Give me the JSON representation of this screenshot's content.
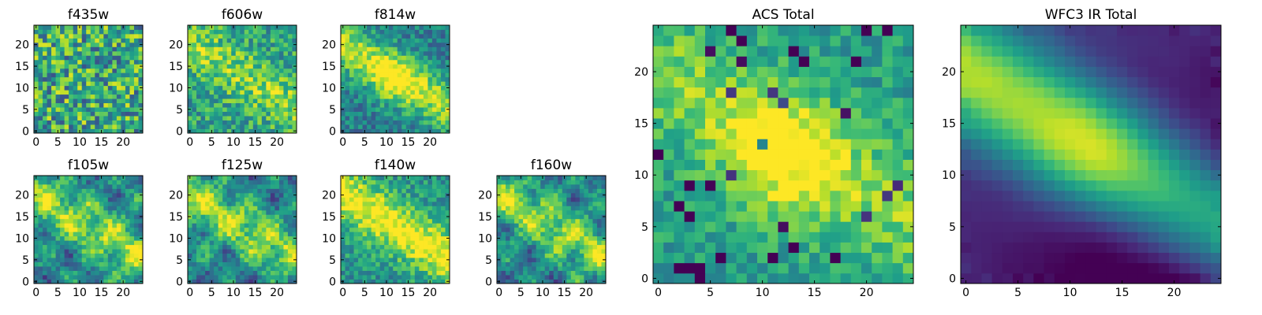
{
  "figure": {
    "description_title": "Multi-band cutout image grid",
    "colormap": "viridis"
  },
  "chart_data": [
    {
      "type": "heatmap",
      "title": "f435w",
      "xticks": [
        0,
        5,
        10,
        15,
        20
      ],
      "yticks": [
        0,
        5,
        10,
        15,
        20
      ],
      "xlim": [
        0,
        25
      ],
      "ylim": [
        0,
        25
      ],
      "grid": false,
      "pattern": "noise",
      "seed": 11
    },
    {
      "type": "heatmap",
      "title": "f606w",
      "xticks": [
        0,
        5,
        10,
        15,
        20
      ],
      "yticks": [
        0,
        5,
        10,
        15,
        20
      ],
      "xlim": [
        0,
        25
      ],
      "ylim": [
        0,
        25
      ],
      "grid": false,
      "pattern": "mild-blob",
      "seed": 23
    },
    {
      "type": "heatmap",
      "title": "f814w",
      "xticks": [
        0,
        5,
        10,
        15,
        20
      ],
      "yticks": [
        0,
        5,
        10,
        15,
        20
      ],
      "xlim": [
        0,
        25
      ],
      "ylim": [
        0,
        25
      ],
      "grid": false,
      "pattern": "diagonal",
      "seed": 37
    },
    {
      "type": "heatmap",
      "title": "f105w",
      "xticks": [
        0,
        5,
        10,
        15,
        20
      ],
      "yticks": [
        0,
        5,
        10,
        15,
        20
      ],
      "xlim": [
        0,
        25
      ],
      "ylim": [
        0,
        25
      ],
      "grid": false,
      "pattern": "blobs",
      "seed": 41
    },
    {
      "type": "heatmap",
      "title": "f125w",
      "xticks": [
        0,
        5,
        10,
        15,
        20
      ],
      "yticks": [
        0,
        5,
        10,
        15,
        20
      ],
      "xlim": [
        0,
        25
      ],
      "ylim": [
        0,
        25
      ],
      "grid": false,
      "pattern": "blobs",
      "seed": 53
    },
    {
      "type": "heatmap",
      "title": "f140w",
      "xticks": [
        0,
        5,
        10,
        15,
        20
      ],
      "yticks": [
        0,
        5,
        10,
        15,
        20
      ],
      "xlim": [
        0,
        25
      ],
      "ylim": [
        0,
        25
      ],
      "grid": false,
      "pattern": "diagonal-bright",
      "seed": 67
    },
    {
      "type": "heatmap",
      "title": "f160w",
      "xticks": [
        0,
        5,
        10,
        15,
        20
      ],
      "yticks": [
        0,
        5,
        10,
        15,
        20
      ],
      "xlim": [
        0,
        25
      ],
      "ylim": [
        0,
        25
      ],
      "grid": false,
      "pattern": "blobs",
      "seed": 79
    },
    {
      "type": "heatmap",
      "title": "ACS Total",
      "xticks": [
        0,
        5,
        10,
        15,
        20
      ],
      "yticks": [
        0,
        5,
        10,
        15,
        20
      ],
      "xlim": [
        0,
        25
      ],
      "ylim": [
        0,
        25
      ],
      "grid": false,
      "pattern": "acs",
      "seed": 97
    },
    {
      "type": "heatmap",
      "title": "WFC3 IR Total",
      "xticks": [
        0,
        5,
        10,
        15,
        20
      ],
      "yticks": [
        0,
        5,
        10,
        15,
        20
      ],
      "xlim": [
        0,
        25
      ],
      "ylim": [
        0,
        25
      ],
      "grid": false,
      "pattern": "smooth",
      "seed": 101
    }
  ]
}
